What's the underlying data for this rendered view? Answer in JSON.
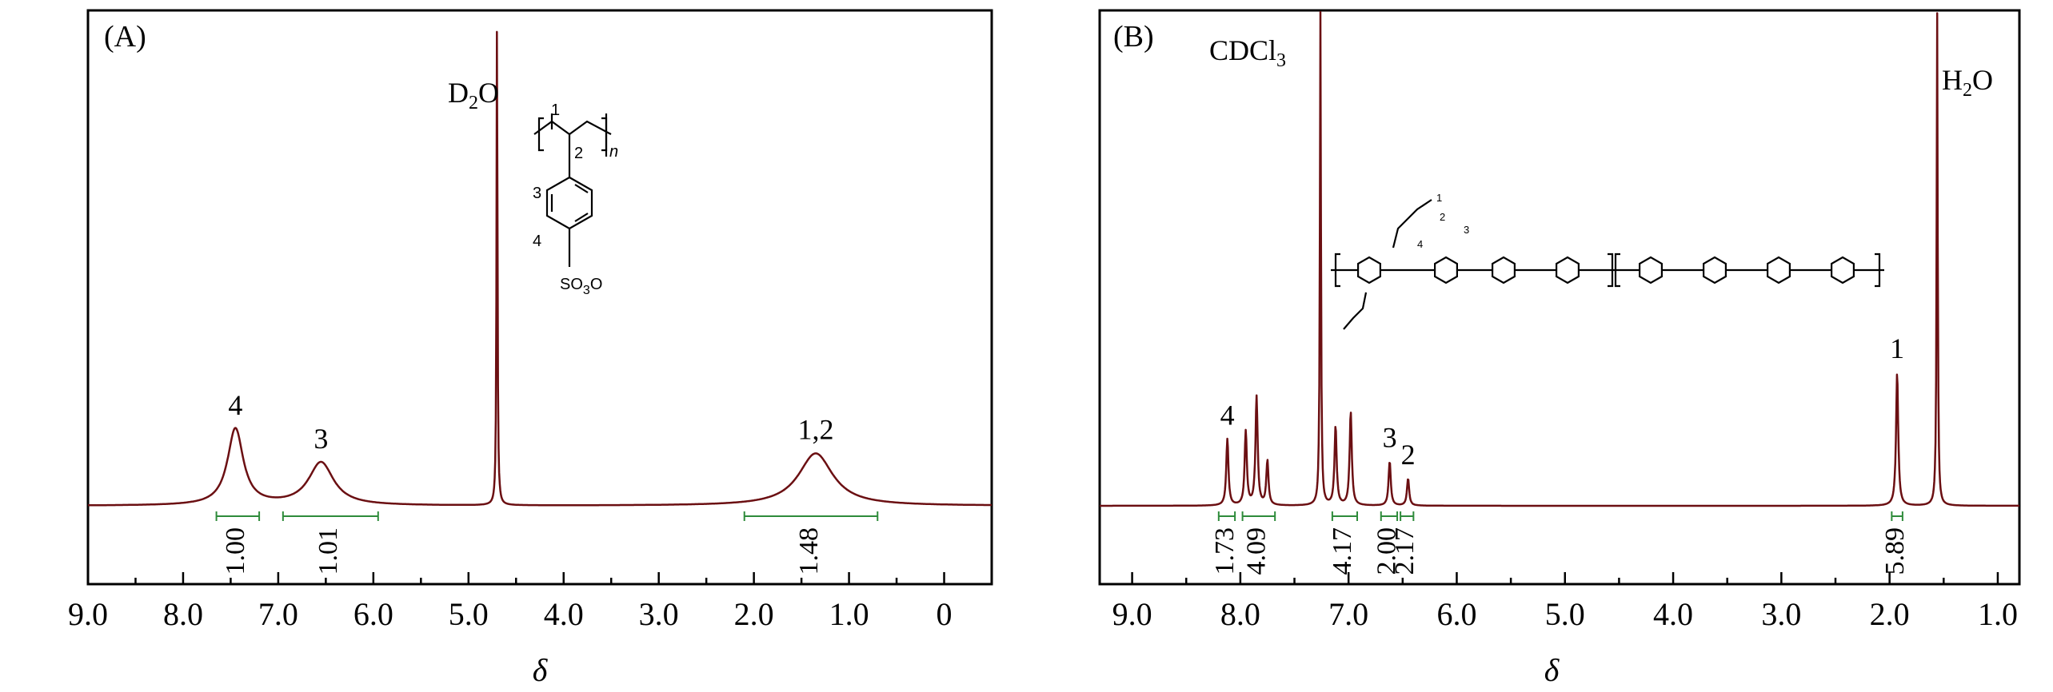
{
  "chart_data": [
    {
      "type": "line",
      "panel": "(A)",
      "xlabel": "δ",
      "xlim": [
        9.0,
        -0.5
      ],
      "xticks": [
        9.0,
        8.0,
        7.0,
        6.0,
        5.0,
        4.0,
        3.0,
        2.0,
        1.0,
        0
      ],
      "xtick_labels": [
        "9.0",
        "8.0",
        "7.0",
        "6.0",
        "5.0",
        "4.0",
        "3.0",
        "2.0",
        "1.0",
        "0"
      ],
      "grid": false,
      "peaks": [
        {
          "label": "4",
          "ppm": 7.45,
          "height": 0.155
        },
        {
          "label": "3",
          "ppm": 6.55,
          "height": 0.087
        },
        {
          "label": "D2O",
          "ppm": 4.7,
          "height": 1.0
        },
        {
          "label": "1,2",
          "ppm": 1.35,
          "height": 0.106
        }
      ],
      "integrals": [
        {
          "value": "1.00",
          "from": 7.65,
          "to": 7.2
        },
        {
          "value": "1.01",
          "from": 6.95,
          "to": 5.95
        },
        {
          "value": "1.48",
          "from": 2.1,
          "to": 0.7
        }
      ],
      "annotations": [
        {
          "text_main": "D",
          "sub": "2",
          "text_end": "O"
        }
      ],
      "structure": {
        "name": "poly(styrene sulfonate)",
        "labels": [
          "1",
          "2",
          "3",
          "4",
          "n"
        ],
        "group_main": "SO",
        "group_sub": "3",
        "group_end": "O"
      }
    },
    {
      "type": "line",
      "panel": "(B)",
      "xlabel": "δ",
      "xlim": [
        9.3,
        0.8
      ],
      "xticks": [
        9.0,
        8.0,
        7.0,
        6.0,
        5.0,
        4.0,
        3.0,
        2.0,
        1.0
      ],
      "xtick_labels": [
        "9.0",
        "8.0",
        "7.0",
        "6.0",
        "5.0",
        "4.0",
        "3.0",
        "2.0",
        "1.0"
      ],
      "grid": false,
      "peaks": [
        {
          "label": "4",
          "ppm": 8.12,
          "height": 0.135
        },
        {
          "ppm": 7.95,
          "height": 0.15
        },
        {
          "ppm": 7.85,
          "height": 0.22
        },
        {
          "ppm": 7.75,
          "height": 0.09
        },
        {
          "label": "CDCl3",
          "ppm": 7.26,
          "height": 1.0
        },
        {
          "ppm": 7.12,
          "height": 0.16
        },
        {
          "ppm": 6.98,
          "height": 0.19
        },
        {
          "label": "3",
          "ppm": 6.62,
          "height": 0.09
        },
        {
          "label": "2",
          "ppm": 6.45,
          "height": 0.055
        },
        {
          "label": "1",
          "ppm": 1.93,
          "height": 0.27
        },
        {
          "label": "H2O",
          "ppm": 1.56,
          "height": 1.0
        }
      ],
      "integrals": [
        {
          "value": "1.73",
          "from": 8.2,
          "to": 8.05
        },
        {
          "value": "4.09",
          "from": 7.98,
          "to": 7.68
        },
        {
          "value": "4.17",
          "from": 7.15,
          "to": 6.92
        },
        {
          "value": "2.00",
          "from": 6.7,
          "to": 6.55
        },
        {
          "value": "2.17",
          "from": 6.52,
          "to": 6.4
        },
        {
          "value": "5.89",
          "from": 1.98,
          "to": 1.88
        }
      ],
      "annotations": [
        {
          "text_main": "CDCl",
          "sub": "3"
        },
        {
          "text_main": "H",
          "sub": "2",
          "text_end": "O"
        }
      ],
      "structure": {
        "name": "allyl-functionalized poly(ether sulfone ketone) copolymer",
        "labels": [
          "1",
          "2",
          "3",
          "4"
        ]
      }
    }
  ]
}
